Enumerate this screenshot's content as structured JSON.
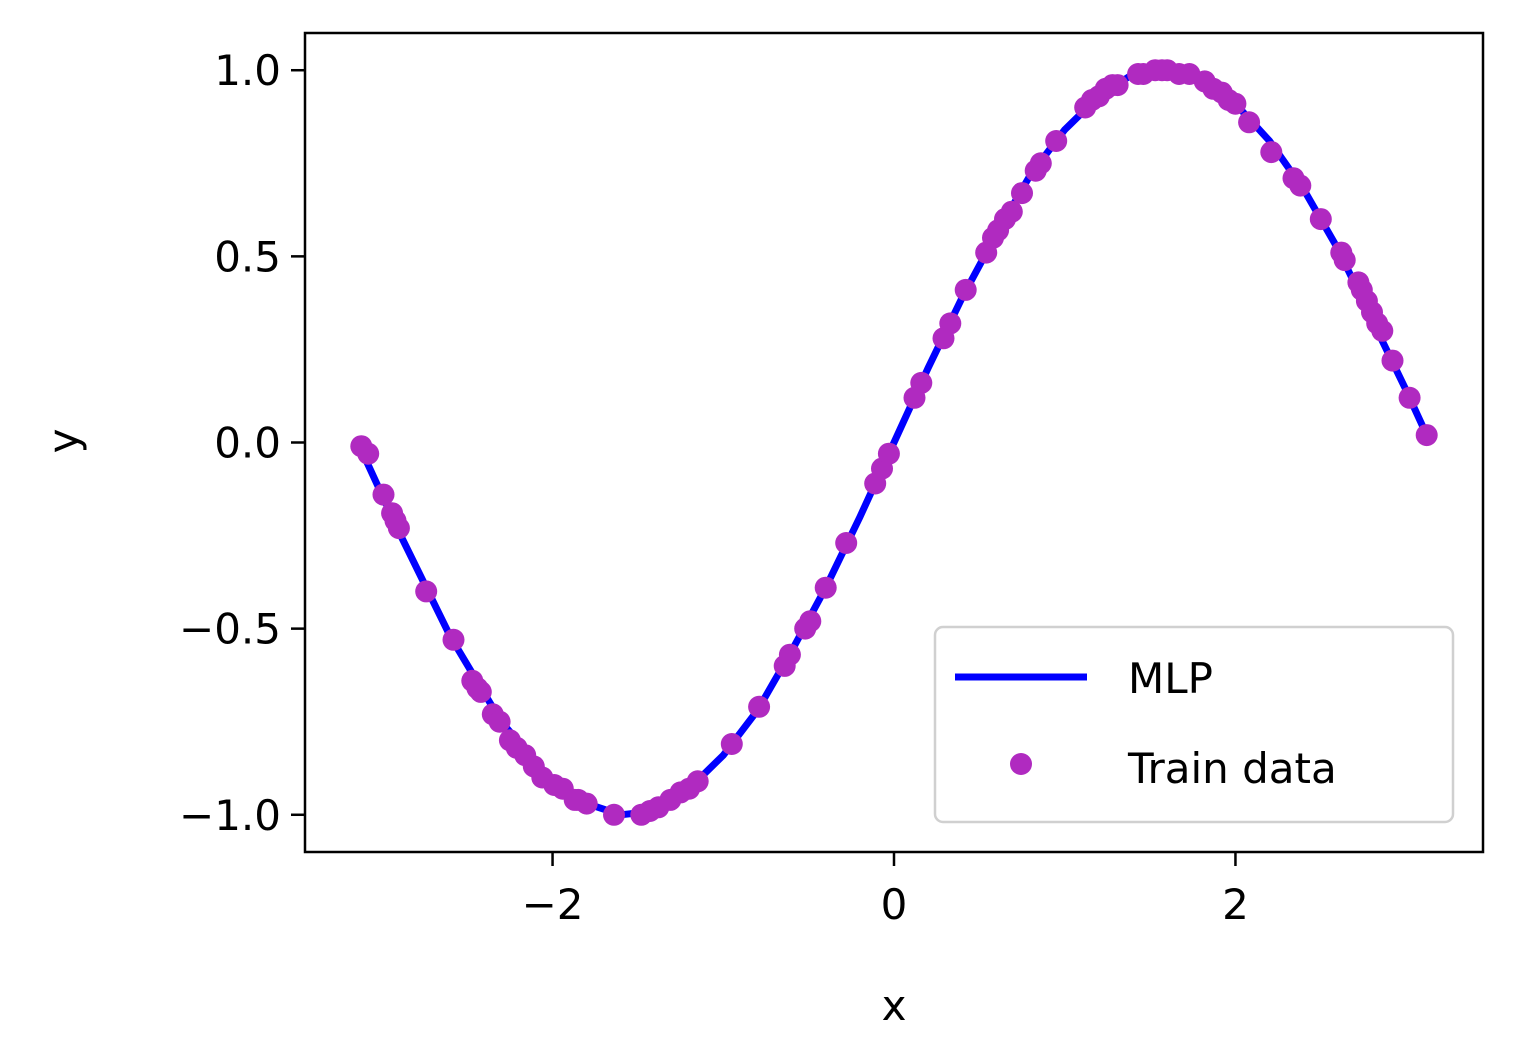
{
  "chart_data": {
    "type": "line",
    "title": "",
    "xlabel": "x",
    "ylabel": "y",
    "xlim": [
      -3.45,
      3.45
    ],
    "ylim": [
      -1.1,
      1.1
    ],
    "xticks": [
      -2,
      0,
      2
    ],
    "xtick_labels": [
      "−2",
      "0",
      "2"
    ],
    "yticks": [
      1.0,
      0.5,
      0.0,
      -0.5,
      -1.0
    ],
    "ytick_labels": [
      "1.0",
      "0.5",
      "0.0",
      "−0.5",
      "−1.0"
    ],
    "grid": false,
    "legend_position": "lower-right",
    "series": [
      {
        "name": "MLP",
        "kind": "line",
        "color": "#0000ff",
        "x": [
          -3.14,
          -2.9,
          -2.6,
          -2.3,
          -2.0,
          -1.8,
          -1.6,
          -1.4,
          -1.2,
          -1.0,
          -0.8,
          -0.6,
          -0.4,
          -0.2,
          0.0,
          0.2,
          0.4,
          0.6,
          0.8,
          1.0,
          1.2,
          1.4,
          1.6,
          1.8,
          2.0,
          2.2,
          2.4,
          2.6,
          2.8,
          3.0,
          3.14
        ],
        "y": [
          0.0,
          -0.24,
          -0.52,
          -0.75,
          -0.91,
          -0.97,
          -1.0,
          -0.99,
          -0.93,
          -0.84,
          -0.72,
          -0.56,
          -0.39,
          -0.2,
          0.0,
          0.2,
          0.39,
          0.56,
          0.72,
          0.84,
          0.93,
          0.99,
          1.0,
          0.97,
          0.91,
          0.81,
          0.68,
          0.52,
          0.33,
          0.14,
          0.0
        ]
      },
      {
        "name": "Train data",
        "kind": "scatter",
        "color": "#b02ac0",
        "x": [
          -3.12,
          -3.08,
          -2.99,
          -2.94,
          -2.92,
          -2.9,
          -2.74,
          -2.58,
          -2.47,
          -2.44,
          -2.42,
          -2.35,
          -2.31,
          -2.25,
          -2.21,
          -2.16,
          -2.11,
          -2.06,
          -1.99,
          -1.94,
          -1.87,
          -1.85,
          -1.8,
          -1.64,
          -1.48,
          -1.43,
          -1.38,
          -1.31,
          -1.25,
          -1.2,
          -1.15,
          -0.95,
          -0.79,
          -0.64,
          -0.61,
          -0.52,
          -0.49,
          -0.4,
          -0.28,
          -0.11,
          -0.07,
          -0.03,
          0.12,
          0.16,
          0.29,
          0.33,
          0.42,
          0.54,
          0.58,
          0.61,
          0.65,
          0.69,
          0.75,
          0.83,
          0.86,
          0.95,
          1.12,
          1.16,
          1.2,
          1.24,
          1.28,
          1.31,
          1.43,
          1.46,
          1.53,
          1.57,
          1.6,
          1.67,
          1.73,
          1.82,
          1.87,
          1.92,
          1.96,
          2.0,
          2.08,
          2.21,
          2.34,
          2.38,
          2.5,
          2.62,
          2.64,
          2.72,
          2.74,
          2.77,
          2.8,
          2.83,
          2.86,
          2.92,
          3.02,
          3.12
        ],
        "y": [
          -0.01,
          -0.03,
          -0.14,
          -0.19,
          -0.21,
          -0.23,
          -0.4,
          -0.53,
          -0.64,
          -0.66,
          -0.67,
          -0.73,
          -0.75,
          -0.8,
          -0.82,
          -0.84,
          -0.87,
          -0.9,
          -0.92,
          -0.93,
          -0.96,
          -0.96,
          -0.97,
          -1.0,
          -1.0,
          -0.99,
          -0.98,
          -0.96,
          -0.94,
          -0.93,
          -0.91,
          -0.81,
          -0.71,
          -0.6,
          -0.57,
          -0.5,
          -0.48,
          -0.39,
          -0.27,
          -0.11,
          -0.07,
          -0.03,
          0.12,
          0.16,
          0.28,
          0.32,
          0.41,
          0.51,
          0.55,
          0.57,
          0.6,
          0.62,
          0.67,
          0.73,
          0.75,
          0.81,
          0.9,
          0.92,
          0.93,
          0.95,
          0.96,
          0.96,
          0.99,
          0.99,
          1.0,
          1.0,
          1.0,
          0.99,
          0.99,
          0.97,
          0.95,
          0.94,
          0.92,
          0.91,
          0.86,
          0.78,
          0.71,
          0.69,
          0.6,
          0.51,
          0.49,
          0.43,
          0.41,
          0.38,
          0.35,
          0.32,
          0.3,
          0.22,
          0.12,
          0.02
        ]
      }
    ]
  }
}
